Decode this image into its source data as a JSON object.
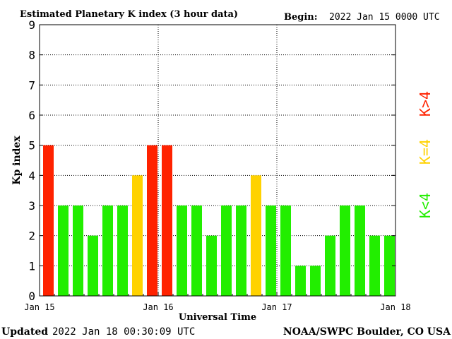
{
  "header": {
    "title": "Estimated Planetary K index (3 hour data)",
    "begin_label": "Begin:",
    "begin_value": "2022 Jan 15 0000 UTC"
  },
  "footer": {
    "updated_label": "Updated",
    "updated_value": "2022 Jan 18 00:30:09 UTC",
    "source": "NOAA/SWPC Boulder, CO USA"
  },
  "legend": {
    "high": "K>4",
    "equal": "K=4",
    "low": "K<4"
  },
  "colors": {
    "high": "#ff2200",
    "equal": "#ffd200",
    "low": "#22ee00",
    "axes": "#000000",
    "grid": "#000000",
    "background": "#ffffff"
  },
  "chart_data": {
    "type": "bar",
    "title": "Estimated Planetary K index (3 hour data)",
    "xlabel": "Universal Time",
    "ylabel": "Kp index",
    "ylim": [
      0,
      9
    ],
    "yticks": [
      "0",
      "1",
      "2",
      "3",
      "4",
      "5",
      "6",
      "7",
      "8",
      "9"
    ],
    "xticks": [
      "Jan 15",
      "Jan 16",
      "Jan 17",
      "Jan 18"
    ],
    "grid": true,
    "x_interval_hours": 3,
    "values": [
      5,
      3,
      3,
      2,
      3,
      3,
      4,
      5,
      5,
      3,
      3,
      2,
      3,
      3,
      4,
      3,
      3,
      1,
      1,
      2,
      3,
      3,
      2,
      2
    ]
  }
}
